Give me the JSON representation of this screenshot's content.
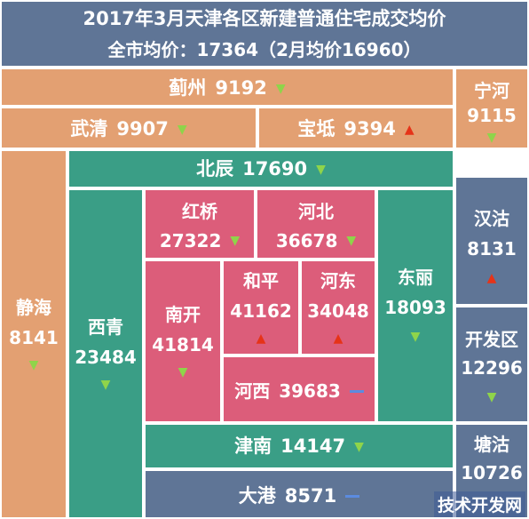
{
  "header": {
    "title": "2017年3月天津各区新建普通住宅成交均价",
    "subtitle": "全市均价：17364（2月均价16960）"
  },
  "districts": {
    "jizhou": {
      "name": "蓟州",
      "price": "9192",
      "trend": "down"
    },
    "ninghe": {
      "name": "宁河",
      "price": "9115",
      "trend": "down"
    },
    "wuqing": {
      "name": "武清",
      "price": "9907",
      "trend": "down"
    },
    "baodi": {
      "name": "宝坻",
      "price": "9394",
      "trend": "up"
    },
    "beichen": {
      "name": "北辰",
      "price": "17690",
      "trend": "down"
    },
    "jinghai": {
      "name": "静海",
      "price": "8141",
      "trend": "down"
    },
    "xiqing": {
      "name": "西青",
      "price": "23484",
      "trend": "down"
    },
    "hongqiao": {
      "name": "红桥",
      "price": "27322",
      "trend": "down"
    },
    "hebei": {
      "name": "河北",
      "price": "36678",
      "trend": "down"
    },
    "nankai": {
      "name": "南开",
      "price": "41814",
      "trend": "down"
    },
    "heping": {
      "name": "和平",
      "price": "41162",
      "trend": "up"
    },
    "hedong": {
      "name": "河东",
      "price": "34048",
      "trend": "up"
    },
    "dongli": {
      "name": "东丽",
      "price": "18093",
      "trend": "down"
    },
    "hexi": {
      "name": "河西",
      "price": "39683",
      "trend": "flat"
    },
    "hangu": {
      "name": "汉沽",
      "price": "8131",
      "trend": "up"
    },
    "kaifaqu": {
      "name": "开发区",
      "price": "12296",
      "trend": "down"
    },
    "jinnan": {
      "name": "津南",
      "price": "14147",
      "trend": "down"
    },
    "tanggu": {
      "name": "塘沽",
      "price": "10726",
      "trend": "down"
    },
    "dagang": {
      "name": "大港",
      "price": "8571",
      "trend": "flat"
    }
  },
  "colors": {
    "header": "#5f7596",
    "outer_ring": "#e3a072",
    "middle_ring": "#3a9e86",
    "center": "#dc5d7a",
    "binhai": "#5f7596",
    "arrow_down": "#8fd44a",
    "arrow_up": "#e63318",
    "flat_bar": "#5b8be0"
  },
  "watermark": "技术开发网"
}
